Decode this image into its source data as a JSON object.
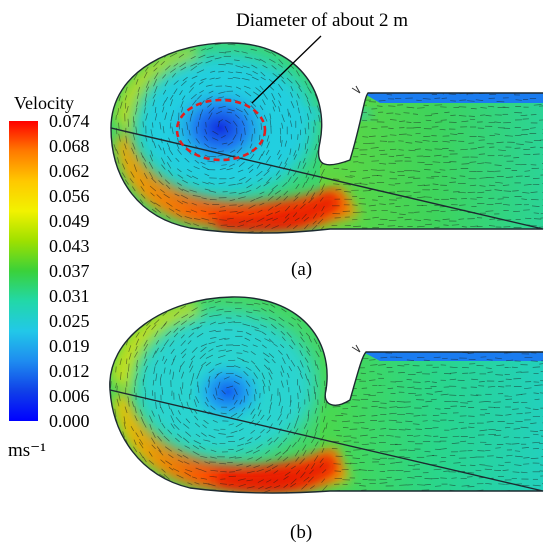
{
  "colorbar": {
    "title": "Velocity",
    "unit": "ms⁻¹",
    "ticks": [
      "0.074",
      "0.068",
      "0.062",
      "0.056",
      "0.049",
      "0.043",
      "0.037",
      "0.031",
      "0.025",
      "0.019",
      "0.012",
      "0.006",
      "0.000"
    ],
    "colors": [
      "#ff0000",
      "#ff7a00",
      "#ffc800",
      "#f2f200",
      "#9ee000",
      "#3ad13a",
      "#22d8a8",
      "#22c8e8",
      "#1e8cf0",
      "#1040e8",
      "#0000ff"
    ]
  },
  "annotation": "Diameter of about 2 m",
  "panels": [
    {
      "label": "(a)"
    },
    {
      "label": "(b)"
    }
  ]
}
